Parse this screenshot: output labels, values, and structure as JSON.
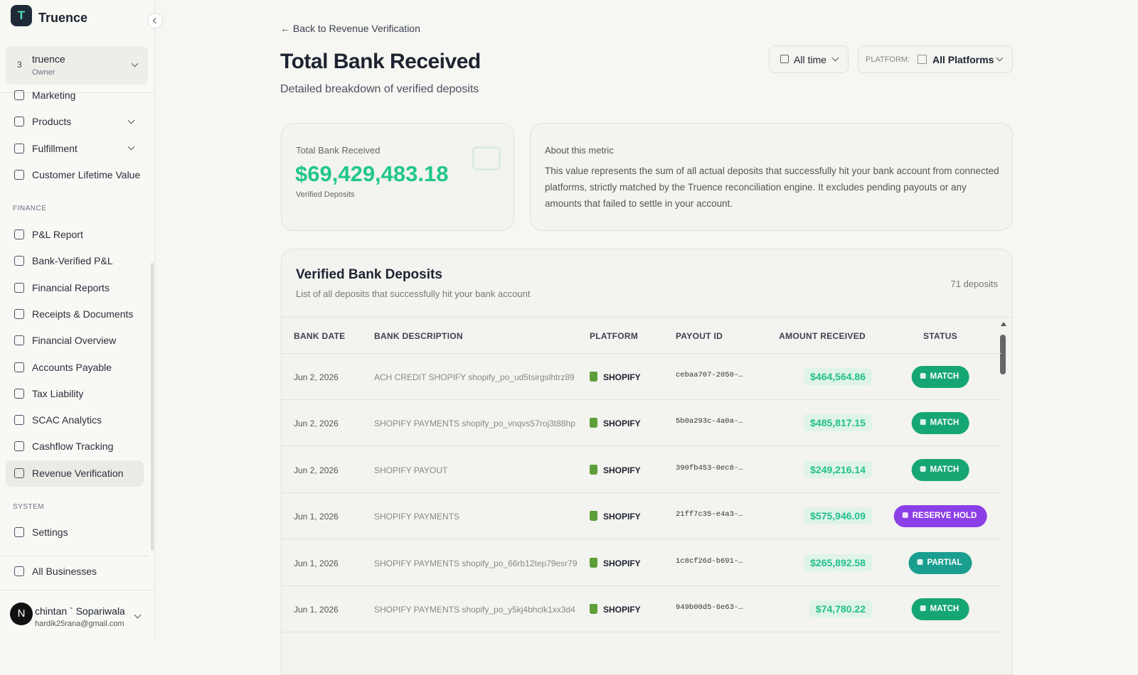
{
  "sidebar": {
    "brand_initial": "T",
    "brand": "Truence",
    "workspace": {
      "badge": "3",
      "name": "truence",
      "role": "Owner"
    },
    "nav": [
      "Marketing",
      "Products",
      "Fulfillment",
      "Customer Lifetime Value"
    ],
    "finance_heading": "FINANCE",
    "finance": [
      "P&L Report",
      "Bank-Verified P&L",
      "Financial Reports",
      "Receipts & Documents",
      "Financial Overview",
      "Accounts Payable",
      "Tax Liability",
      "SCAC Analytics",
      "Cashflow Tracking",
      "Revenue Verification"
    ],
    "system_heading": "SYSTEM",
    "system": [
      "Settings"
    ],
    "all_businesses": "All Businesses",
    "user": {
      "initial": "N",
      "name": "chintan ` Sopariwala",
      "email": "hardik25rana@gmail.com"
    }
  },
  "header": {
    "back": "Back to Revenue Verification",
    "title": "Total Bank Received",
    "subtitle": "Detailed breakdown of verified deposits",
    "time_filter": "All time",
    "platform_label": "PLATFORM:",
    "platform_value": "All Platforms"
  },
  "metric": {
    "label": "Total Bank Received",
    "value": "$69,429,483.18",
    "caption": "Verified Deposits"
  },
  "about": {
    "title": "About this metric",
    "text": "This value represents the sum of all actual deposits that successfully hit your bank account from connected platforms, strictly matched by the Truence reconciliation engine. It excludes pending payouts or any amounts that failed to settle in your account."
  },
  "table": {
    "title": "Verified Bank Deposits",
    "subtitle": "List of all deposits that successfully hit your bank account",
    "count": "71 deposits",
    "columns": [
      "BANK DATE",
      "BANK DESCRIPTION",
      "PLATFORM",
      "PAYOUT ID",
      "AMOUNT RECEIVED",
      "STATUS"
    ],
    "rows": [
      {
        "date": "Jun 2, 2026",
        "description": "ACH CREDIT SHOPIFY shopify_po_ud5tsirgslhtrz89",
        "platform": "SHOPIFY",
        "payout_id": "cebaa707-2050-…",
        "amount": "$464,564.86",
        "status": "MATCH",
        "status_color": "#16a673"
      },
      {
        "date": "Jun 2, 2026",
        "description": "SHOPIFY PAYMENTS shopify_po_vnqvs57roj3t88hp",
        "platform": "SHOPIFY",
        "payout_id": "5b0a293c-4a0a-…",
        "amount": "$485,817.15",
        "status": "MATCH",
        "status_color": "#16a673"
      },
      {
        "date": "Jun 2, 2026",
        "description": "SHOPIFY PAYOUT",
        "platform": "SHOPIFY",
        "payout_id": "390fb453-0ec8-…",
        "amount": "$249,216.14",
        "status": "MATCH",
        "status_color": "#16a673"
      },
      {
        "date": "Jun 1, 2026",
        "description": "SHOPIFY PAYMENTS",
        "platform": "SHOPIFY",
        "payout_id": "21ff7c35-e4a3-…",
        "amount": "$575,946.09",
        "status": "RESERVE HOLD",
        "status_color": "#8b3fe6"
      },
      {
        "date": "Jun 1, 2026",
        "description": "SHOPIFY PAYMENTS shopify_po_66rb12tep79esr79",
        "platform": "SHOPIFY",
        "payout_id": "1c8cf26d-b691-…",
        "amount": "$265,892.58",
        "status": "PARTIAL",
        "status_color": "#1a9e8f"
      },
      {
        "date": "Jun 1, 2026",
        "description": "SHOPIFY PAYMENTS shopify_po_y5kj4bhclk1xx3d4",
        "platform": "SHOPIFY",
        "payout_id": "949b00d5-6e63-…",
        "amount": "$74,780.22",
        "status": "MATCH",
        "status_color": "#16a673"
      }
    ]
  }
}
